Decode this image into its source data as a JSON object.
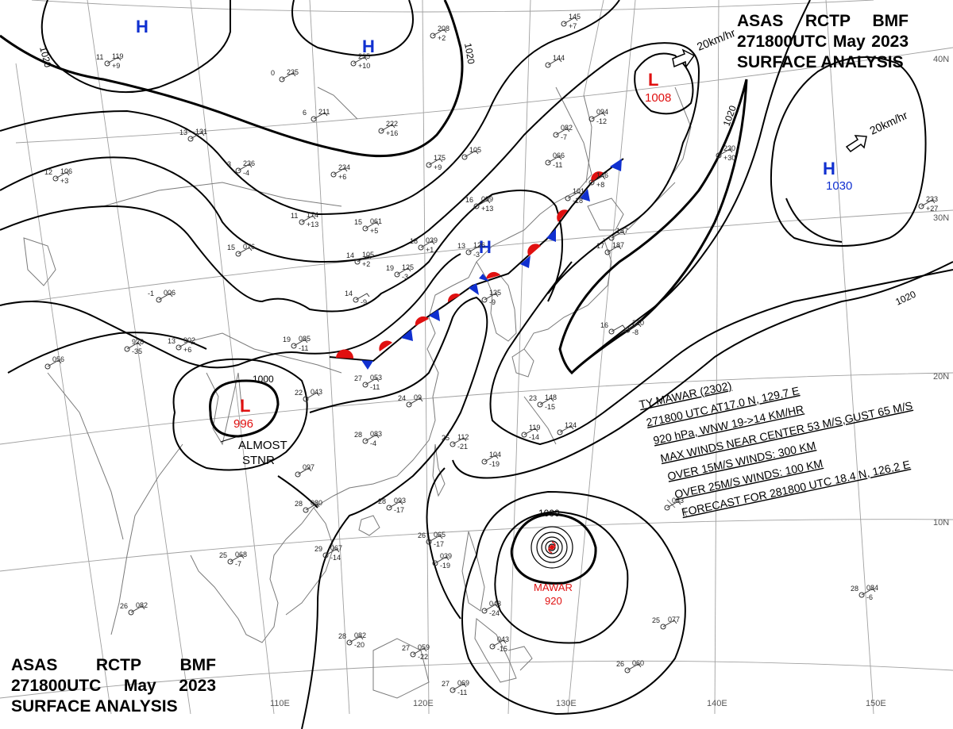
{
  "header": {
    "line1": [
      "ASAS",
      "RCTP",
      "BMF"
    ],
    "line2": [
      "271800UTC",
      "May",
      "2023"
    ],
    "line3": "SURFACE ANALYSIS"
  },
  "footer": {
    "line1": [
      "ASAS",
      "RCTP",
      "BMF"
    ],
    "line2": [
      "271800UTC",
      "May",
      "2023"
    ],
    "line3": "SURFACE ANALYSIS"
  },
  "colors": {
    "high": "#1030d0",
    "low": "#e01010",
    "warm_front": "#e01010",
    "cold_front": "#1030d0",
    "isobar": "#000000",
    "grid": "#a0a0a0",
    "coast": "#7a7a7a"
  },
  "pressure_centers": [
    {
      "kind": "H",
      "value": ""
    },
    {
      "kind": "H",
      "value": ""
    },
    {
      "kind": "L",
      "value": "1008"
    },
    {
      "kind": "H",
      "value": "1030"
    },
    {
      "kind": "H",
      "value": ""
    },
    {
      "kind": "L",
      "value": "996"
    }
  ],
  "motion_labels": [
    "20km/hr",
    "20km/hr"
  ],
  "isobar_labels": [
    "1020",
    "1020",
    "1020",
    "1020",
    "1000",
    "1000"
  ],
  "almost_stnr": [
    "ALMOST",
    "STNR"
  ],
  "typhoon": {
    "name": "MAWAR",
    "pressure": "920",
    "bulletin": [
      "TY MAWAR  (2302)",
      "271800 UTC  AT17.0 N, 129.7 E",
      "920 hPa, WNW  19->14 KM/HR",
      "MAX WINDS NEAR CENTER 53 M/S,GUST 65 M/S",
      "OVER 15M/S WINDS: 300 KM",
      "OVER 25M/S WINDS: 100 KM",
      "FORECAST FOR 281800 UTC 18.4 N, 126.2 E"
    ]
  },
  "grid_labels": {
    "longitudes": [
      "110E",
      "120E",
      "130E",
      "140E",
      "150E"
    ],
    "latitudes": [
      "40N",
      "30N",
      "20N",
      "10N"
    ]
  },
  "stations": [
    {
      "t": "11",
      "p": "119",
      "d": "+9"
    },
    {
      "t": "0",
      "p": "235",
      "d": ""
    },
    {
      "t": "13",
      "p": "131",
      "d": ""
    },
    {
      "t": "12",
      "p": "106",
      "d": "+3"
    },
    {
      "t": "6",
      "p": "211",
      "d": ""
    },
    {
      "t": "",
      "p": "222",
      "d": "+16"
    },
    {
      "t": "3",
      "p": "236",
      "d": "-4"
    },
    {
      "t": "",
      "p": "234",
      "d": "+6"
    },
    {
      "t": "11",
      "p": "174",
      "d": "+13"
    },
    {
      "t": "15",
      "p": "061",
      "d": "+5"
    },
    {
      "t": "15",
      "p": "076",
      "d": ""
    },
    {
      "t": "14",
      "p": "105",
      "d": "+2"
    },
    {
      "t": "19",
      "p": "125",
      "d": "-3"
    },
    {
      "t": "18",
      "p": "039",
      "d": "+1"
    },
    {
      "t": "13",
      "p": "126",
      "d": "-3"
    },
    {
      "t": "16",
      "p": "099",
      "d": "+13"
    },
    {
      "t": "-1",
      "p": "006",
      "d": ""
    },
    {
      "t": "14",
      "p": "",
      "d": "-9"
    },
    {
      "t": "13",
      "p": "902",
      "d": "+6"
    },
    {
      "t": "19",
      "p": "085",
      "d": "-11"
    },
    {
      "t": "",
      "p": "928",
      "d": "-35"
    },
    {
      "t": "",
      "p": "056",
      "d": ""
    },
    {
      "t": "27",
      "p": "053",
      "d": "-11"
    },
    {
      "t": "22",
      "p": "043",
      "d": ""
    },
    {
      "t": "24",
      "p": "09",
      "d": ""
    },
    {
      "t": "28",
      "p": "083",
      "d": "-4"
    },
    {
      "t": "25",
      "p": "112",
      "d": "-21"
    },
    {
      "t": "",
      "p": "104",
      "d": "-19"
    },
    {
      "t": "",
      "p": "097",
      "d": ""
    },
    {
      "t": "28",
      "p": "080",
      "d": ""
    },
    {
      "t": "28",
      "p": "093",
      "d": "-17"
    },
    {
      "t": "29",
      "p": "067",
      "d": "-14"
    },
    {
      "t": "25",
      "p": "068",
      "d": "-7"
    },
    {
      "t": "26",
      "p": "065",
      "d": "-17"
    },
    {
      "t": "",
      "p": "039",
      "d": "-19"
    },
    {
      "t": "26",
      "p": "082",
      "d": ""
    },
    {
      "t": "28",
      "p": "082",
      "d": "-20"
    },
    {
      "t": "27",
      "p": "059",
      "d": "-22"
    },
    {
      "t": "27",
      "p": "069",
      "d": "-11"
    },
    {
      "t": "",
      "p": "043",
      "d": "-24"
    },
    {
      "t": "",
      "p": "043",
      "d": "-15"
    },
    {
      "t": "23",
      "p": "148",
      "d": "-15"
    },
    {
      "t": "",
      "p": "119",
      "d": "-14"
    },
    {
      "t": "",
      "p": "124",
      "d": ""
    },
    {
      "t": "",
      "p": "220",
      "d": "-8"
    },
    {
      "t": "16",
      "p": "",
      "d": ""
    },
    {
      "t": "17",
      "p": "187",
      "d": ""
    },
    {
      "t": "",
      "p": "101",
      "d": "-18"
    },
    {
      "t": "",
      "p": "146",
      "d": "+8"
    },
    {
      "t": "",
      "p": "082",
      "d": "-7"
    },
    {
      "t": "",
      "p": "066",
      "d": "-11"
    },
    {
      "t": "",
      "p": "094",
      "d": "-12"
    },
    {
      "t": "",
      "p": "230",
      "d": "+30"
    },
    {
      "t": "",
      "p": "233",
      "d": "+27"
    },
    {
      "t": "",
      "p": "144",
      "d": ""
    },
    {
      "t": "",
      "p": "145",
      "d": "+7"
    },
    {
      "t": "",
      "p": "208",
      "d": "+2"
    },
    {
      "t": "",
      "p": "235",
      "d": "+10"
    },
    {
      "t": "",
      "p": "135",
      "d": "-9"
    },
    {
      "t": "",
      "p": "187",
      "d": ""
    },
    {
      "t": "",
      "p": "083",
      "d": ""
    },
    {
      "t": "28",
      "p": "084",
      "d": "-6"
    },
    {
      "t": "25",
      "p": "077",
      "d": ""
    },
    {
      "t": "26",
      "p": "060",
      "d": ""
    },
    {
      "t": "",
      "p": "105",
      "d": ""
    },
    {
      "t": "",
      "p": "175",
      "d": "+9"
    }
  ]
}
